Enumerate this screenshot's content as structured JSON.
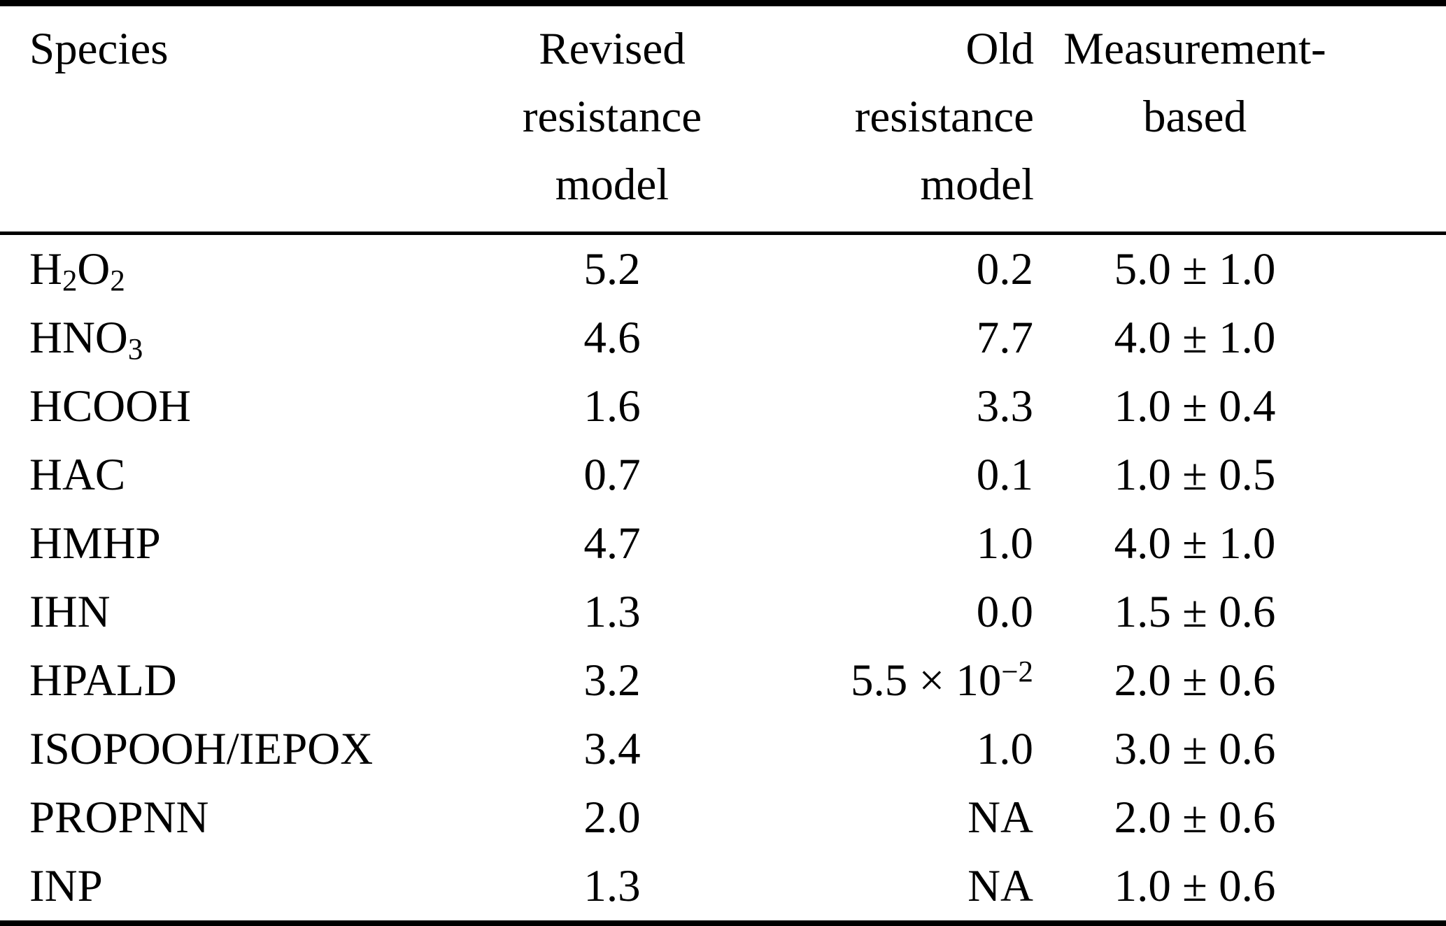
{
  "colors": {
    "text": "#000000",
    "background": "#ffffff",
    "rule": "#000000"
  },
  "table": {
    "columns": [
      {
        "id": "species",
        "lines": [
          "Species"
        ]
      },
      {
        "id": "revised",
        "lines": [
          "Revised",
          "resistance",
          "model"
        ]
      },
      {
        "id": "old",
        "lines": [
          "Old",
          "resistance",
          "model"
        ]
      },
      {
        "id": "measurement",
        "lines": [
          "Measurement-",
          "based"
        ]
      }
    ],
    "rows": [
      {
        "species": "H_2_O_2_",
        "revised": "5.2",
        "old": "0.2",
        "measurement": "5.0 ± 1.0"
      },
      {
        "species": "HNO_3_",
        "revised": "4.6",
        "old": "7.7",
        "measurement": "4.0 ± 1.0"
      },
      {
        "species": "HCOOH",
        "revised": "1.6",
        "old": "3.3",
        "measurement": "1.0 ± 0.4"
      },
      {
        "species": "HAC",
        "revised": "0.7",
        "old": "0.1",
        "measurement": "1.0 ± 0.5"
      },
      {
        "species": "HMHP",
        "revised": "4.7",
        "old": "1.0",
        "measurement": "4.0 ± 1.0"
      },
      {
        "species": "IHN",
        "revised": "1.3",
        "old": "0.0",
        "measurement": "1.5 ± 0.6"
      },
      {
        "species": "HPALD",
        "revised": "3.2",
        "old": "5.5 × 10^−2^",
        "measurement": "2.0 ± 0.6"
      },
      {
        "species": "ISOPOOH/IEPOX",
        "revised": "3.4",
        "old": "1.0",
        "measurement": "3.0 ± 0.6"
      },
      {
        "species": "PROPNN",
        "revised": "2.0",
        "old": "NA",
        "measurement": "2.0 ± 0.6"
      },
      {
        "species": "INP",
        "revised": "1.3",
        "old": "NA",
        "measurement": "1.0 ± 0.6"
      }
    ]
  }
}
